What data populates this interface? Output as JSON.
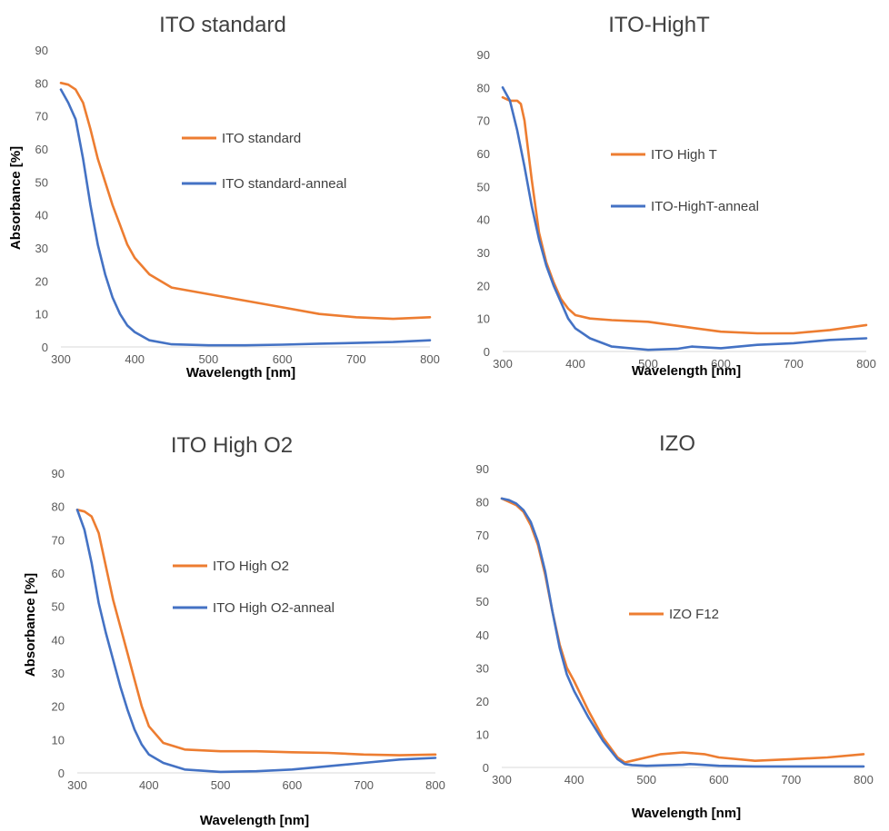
{
  "colors": {
    "orange": "#ed7d31",
    "blue": "#4472c4"
  },
  "chart_data": [
    {
      "type": "line",
      "title": "ITO standard",
      "xlabel": "Wavelength [nm]",
      "ylabel": "Absorbance [%]",
      "xlim": [
        300,
        800
      ],
      "ylim": [
        0,
        90
      ],
      "xticks": [
        300,
        400,
        500,
        600,
        700,
        800
      ],
      "yticks": [
        0,
        10,
        20,
        30,
        40,
        50,
        60,
        70,
        80,
        90
      ],
      "legend_position": "center-right",
      "series": [
        {
          "name": "ITO standard",
          "color": "#ed7d31",
          "x": [
            300,
            310,
            320,
            330,
            340,
            350,
            360,
            370,
            380,
            390,
            400,
            420,
            450,
            500,
            550,
            600,
            650,
            700,
            750,
            800
          ],
          "y": [
            80,
            79.5,
            78,
            74,
            66,
            57,
            50,
            43,
            37,
            31,
            27,
            22,
            18,
            16,
            14,
            12,
            10,
            9,
            8.5,
            9
          ]
        },
        {
          "name": "ITO standard-anneal",
          "color": "#4472c4",
          "x": [
            300,
            310,
            320,
            330,
            340,
            350,
            360,
            370,
            380,
            390,
            400,
            420,
            450,
            500,
            550,
            600,
            650,
            700,
            750,
            800
          ],
          "y": [
            78,
            74,
            69,
            57,
            43,
            31,
            22,
            15,
            10,
            6.5,
            4.5,
            2,
            0.8,
            0.5,
            0.5,
            0.7,
            1,
            1.2,
            1.5,
            2
          ]
        }
      ]
    },
    {
      "type": "line",
      "title": "ITO-HighT",
      "xlabel": "Wavelength [nm]",
      "ylabel": "",
      "xlim": [
        300,
        800
      ],
      "ylim": [
        0,
        90
      ],
      "xticks": [
        300,
        400,
        500,
        600,
        700,
        800
      ],
      "yticks": [
        0,
        10,
        20,
        30,
        40,
        50,
        60,
        70,
        80,
        90
      ],
      "legend_position": "center-right",
      "series": [
        {
          "name": "ITO High T",
          "color": "#ed7d31",
          "x": [
            300,
            310,
            320,
            325,
            330,
            340,
            350,
            360,
            370,
            380,
            390,
            400,
            420,
            450,
            500,
            550,
            600,
            650,
            700,
            750,
            800
          ],
          "y": [
            77,
            76,
            76,
            75,
            70,
            52,
            36,
            27,
            21,
            16,
            13,
            11,
            10,
            9.5,
            9,
            7.5,
            6,
            5.5,
            5.5,
            6.5,
            8
          ]
        },
        {
          "name": "ITO-HighT-anneal",
          "color": "#4472c4",
          "x": [
            300,
            310,
            320,
            330,
            340,
            350,
            360,
            370,
            380,
            390,
            400,
            420,
            450,
            500,
            540,
            560,
            600,
            650,
            700,
            750,
            800
          ],
          "y": [
            80,
            76,
            67,
            56,
            44,
            34,
            26,
            20,
            15,
            10,
            7,
            4,
            1.5,
            0.5,
            0.8,
            1.5,
            1,
            2,
            2.5,
            3.5,
            4
          ]
        }
      ]
    },
    {
      "type": "line",
      "title": "ITO High O2",
      "xlabel": "Wavelength [nm]",
      "ylabel": "Absorbance [%]",
      "xlim": [
        300,
        800
      ],
      "ylim": [
        0,
        90
      ],
      "xticks": [
        300,
        400,
        500,
        600,
        700,
        800
      ],
      "yticks": [
        0,
        10,
        20,
        30,
        40,
        50,
        60,
        70,
        80,
        90
      ],
      "legend_position": "center-right",
      "series": [
        {
          "name": "ITO High O2",
          "color": "#ed7d31",
          "x": [
            300,
            310,
            320,
            330,
            340,
            350,
            360,
            370,
            380,
            390,
            400,
            420,
            450,
            500,
            550,
            600,
            650,
            700,
            750,
            800
          ],
          "y": [
            79,
            78.5,
            77,
            72,
            62,
            52,
            44,
            36,
            28,
            20,
            14,
            9,
            7,
            6.5,
            6.5,
            6.2,
            6,
            5.5,
            5.3,
            5.5
          ]
        },
        {
          "name": "ITO High O2-anneal",
          "color": "#4472c4",
          "x": [
            300,
            310,
            320,
            330,
            340,
            350,
            360,
            370,
            380,
            390,
            400,
            420,
            450,
            500,
            550,
            600,
            650,
            700,
            750,
            800
          ],
          "y": [
            79,
            73,
            63,
            51,
            42,
            34,
            26,
            19,
            13,
            8.5,
            5.5,
            3,
            1,
            0.3,
            0.5,
            1,
            2,
            3,
            4,
            4.5
          ]
        }
      ]
    },
    {
      "type": "line",
      "title": "IZO",
      "xlabel": "Wavelength [nm]",
      "ylabel": "",
      "xlim": [
        300,
        800
      ],
      "ylim": [
        0,
        90
      ],
      "xticks": [
        300,
        400,
        500,
        600,
        700,
        800
      ],
      "yticks": [
        0,
        10,
        20,
        30,
        40,
        50,
        60,
        70,
        80,
        90
      ],
      "legend_position": "center-right",
      "series": [
        {
          "name": "IZO F12",
          "color": "#ed7d31",
          "x": [
            300,
            310,
            320,
            330,
            340,
            350,
            360,
            370,
            380,
            390,
            400,
            420,
            440,
            460,
            470,
            480,
            500,
            520,
            550,
            580,
            600,
            650,
            700,
            750,
            800
          ],
          "y": [
            81,
            80,
            79,
            77,
            73,
            67,
            58,
            47,
            37,
            30,
            26,
            17,
            9,
            3,
            1.5,
            2,
            3,
            4,
            4.5,
            4,
            3,
            2,
            2.5,
            3,
            4
          ]
        },
        {
          "name": "",
          "color": "#4472c4",
          "x": [
            300,
            310,
            320,
            330,
            340,
            350,
            360,
            370,
            380,
            390,
            400,
            420,
            440,
            460,
            470,
            480,
            500,
            550,
            560,
            600,
            650,
            700,
            750,
            800
          ],
          "y": [
            81,
            80.5,
            79.5,
            77.5,
            74,
            68,
            59,
            47,
            36,
            28,
            23,
            15,
            8,
            2.5,
            1,
            0.7,
            0.5,
            0.8,
            1,
            0.5,
            0.3,
            0.3,
            0.3,
            0.3
          ]
        }
      ]
    }
  ]
}
